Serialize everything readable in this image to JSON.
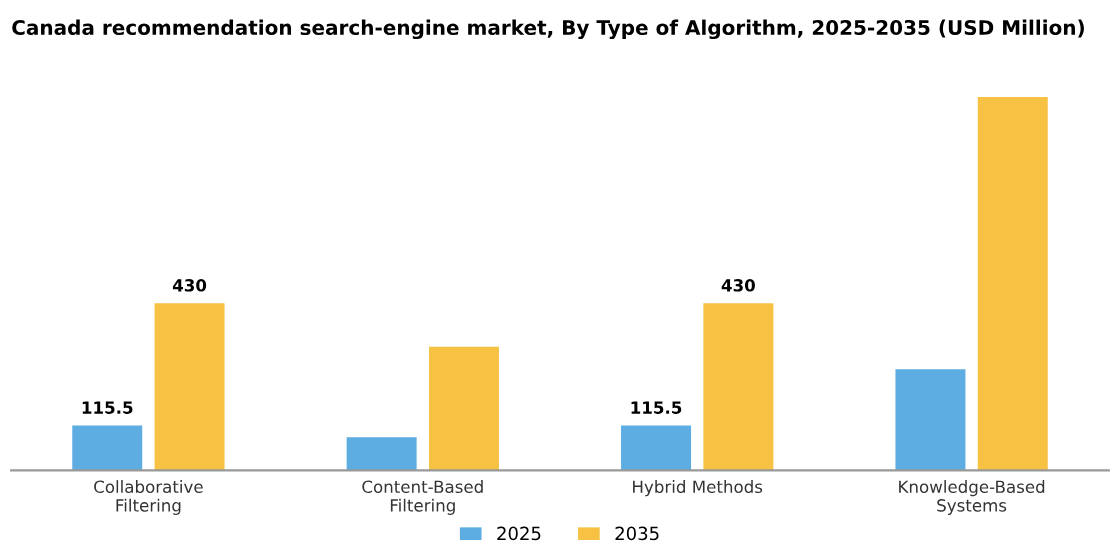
{
  "chart_data": {
    "type": "bar",
    "title": "Canada recommendation search-engine market, By Type of Algorithm, 2025-2035 (USD Million)",
    "categories": [
      "Collaborative\nFiltering",
      "Content-Based\nFiltering",
      "Hybrid Methods",
      "Knowledge-Based\nSystems"
    ],
    "series": [
      {
        "name": "2025",
        "color": "#5dade2",
        "values": [
          115.5,
          85,
          115.5,
          260
        ],
        "value_labels": [
          "115.5",
          null,
          "115.5",
          null
        ]
      },
      {
        "name": "2035",
        "color": "#f7c244",
        "values": [
          430,
          318,
          430,
          960
        ],
        "value_labels": [
          "430",
          null,
          "430",
          null
        ]
      }
    ],
    "legend": "bottom",
    "grid": false
  }
}
